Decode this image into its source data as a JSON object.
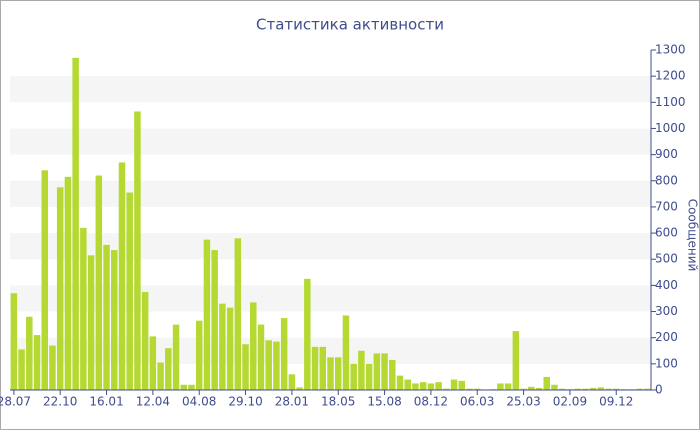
{
  "chart_data": {
    "type": "bar",
    "title": "Статистика активности",
    "y_axis_label": "Сообщений",
    "categories": [
      "28.07",
      null,
      null,
      null,
      null,
      null,
      "22.10",
      null,
      null,
      null,
      null,
      null,
      "16.01",
      null,
      null,
      null,
      null,
      null,
      "12.04",
      null,
      null,
      null,
      null,
      null,
      "04.08",
      null,
      null,
      null,
      null,
      null,
      "29.10",
      null,
      null,
      null,
      null,
      null,
      "28.01",
      null,
      null,
      null,
      null,
      null,
      "18.05",
      null,
      null,
      null,
      null,
      null,
      "15.08",
      null,
      null,
      null,
      null,
      null,
      "08.12",
      null,
      null,
      null,
      null,
      null,
      "06.03",
      null,
      null,
      null,
      null,
      null,
      "25.03",
      null,
      null,
      null,
      null,
      null,
      "02.09",
      null,
      null,
      null,
      null,
      null,
      "09.12",
      null,
      null,
      null,
      null
    ],
    "values": [
      370,
      155,
      280,
      210,
      840,
      170,
      775,
      815,
      1270,
      620,
      515,
      820,
      555,
      535,
      870,
      755,
      1065,
      375,
      205,
      105,
      160,
      250,
      20,
      20,
      265,
      575,
      535,
      330,
      315,
      580,
      175,
      335,
      250,
      190,
      185,
      275,
      60,
      10,
      425,
      165,
      165,
      125,
      125,
      285,
      100,
      150,
      100,
      140,
      140,
      115,
      55,
      40,
      25,
      30,
      25,
      30,
      5,
      40,
      35,
      5,
      5,
      2,
      3,
      25,
      25,
      225,
      5,
      12,
      8,
      50,
      20,
      5,
      3,
      5,
      5,
      8,
      10,
      5,
      5,
      3,
      3,
      5,
      5
    ],
    "color": "#b5d932",
    "ylim": [
      0,
      1300
    ],
    "yticks": [
      0,
      100,
      200,
      300,
      400,
      500,
      600,
      700,
      800,
      900,
      1000,
      1100,
      1200,
      1300
    ],
    "grid": "bands",
    "y_axis_side": "right"
  }
}
